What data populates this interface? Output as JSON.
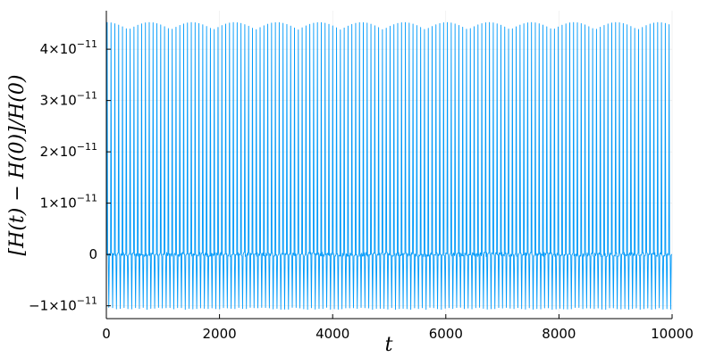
{
  "chart_data": {
    "type": "line",
    "title": "",
    "xlabel": "t",
    "ylabel": "[H(t) − H(0)]/H(0)",
    "xlim": [
      0,
      10000
    ],
    "ylim": [
      -1.25e-11,
      4.75e-11
    ],
    "grid": true,
    "legend": "none",
    "x_ticks": [
      {
        "value": 0,
        "label": "0"
      },
      {
        "value": 2000,
        "label": "2000"
      },
      {
        "value": 4000,
        "label": "4000"
      },
      {
        "value": 6000,
        "label": "6000"
      },
      {
        "value": 8000,
        "label": "8000"
      },
      {
        "value": 10000,
        "label": "10000"
      }
    ],
    "y_ticks": [
      {
        "value": -1e-11,
        "label": "−1×10",
        "exp": "−11"
      },
      {
        "value": 0,
        "label": "0",
        "exp": ""
      },
      {
        "value": 1e-11,
        "label": "1×10",
        "exp": "−11"
      },
      {
        "value": 2e-11,
        "label": "2×10",
        "exp": "−11"
      },
      {
        "value": 3e-11,
        "label": "3×10",
        "exp": "−11"
      },
      {
        "value": 4e-11,
        "label": "4×10",
        "exp": "−11"
      }
    ],
    "series": [
      {
        "color": "#009AFA",
        "oscillation": {
          "x_start": 0,
          "x_end": 10000,
          "spike_count": 148,
          "max_base": 4.4e-11,
          "max_modulation": 1.2e-12,
          "max_period": 750,
          "min_value": -1.05e-11,
          "baseline_noise": 8e-13
        }
      }
    ]
  }
}
